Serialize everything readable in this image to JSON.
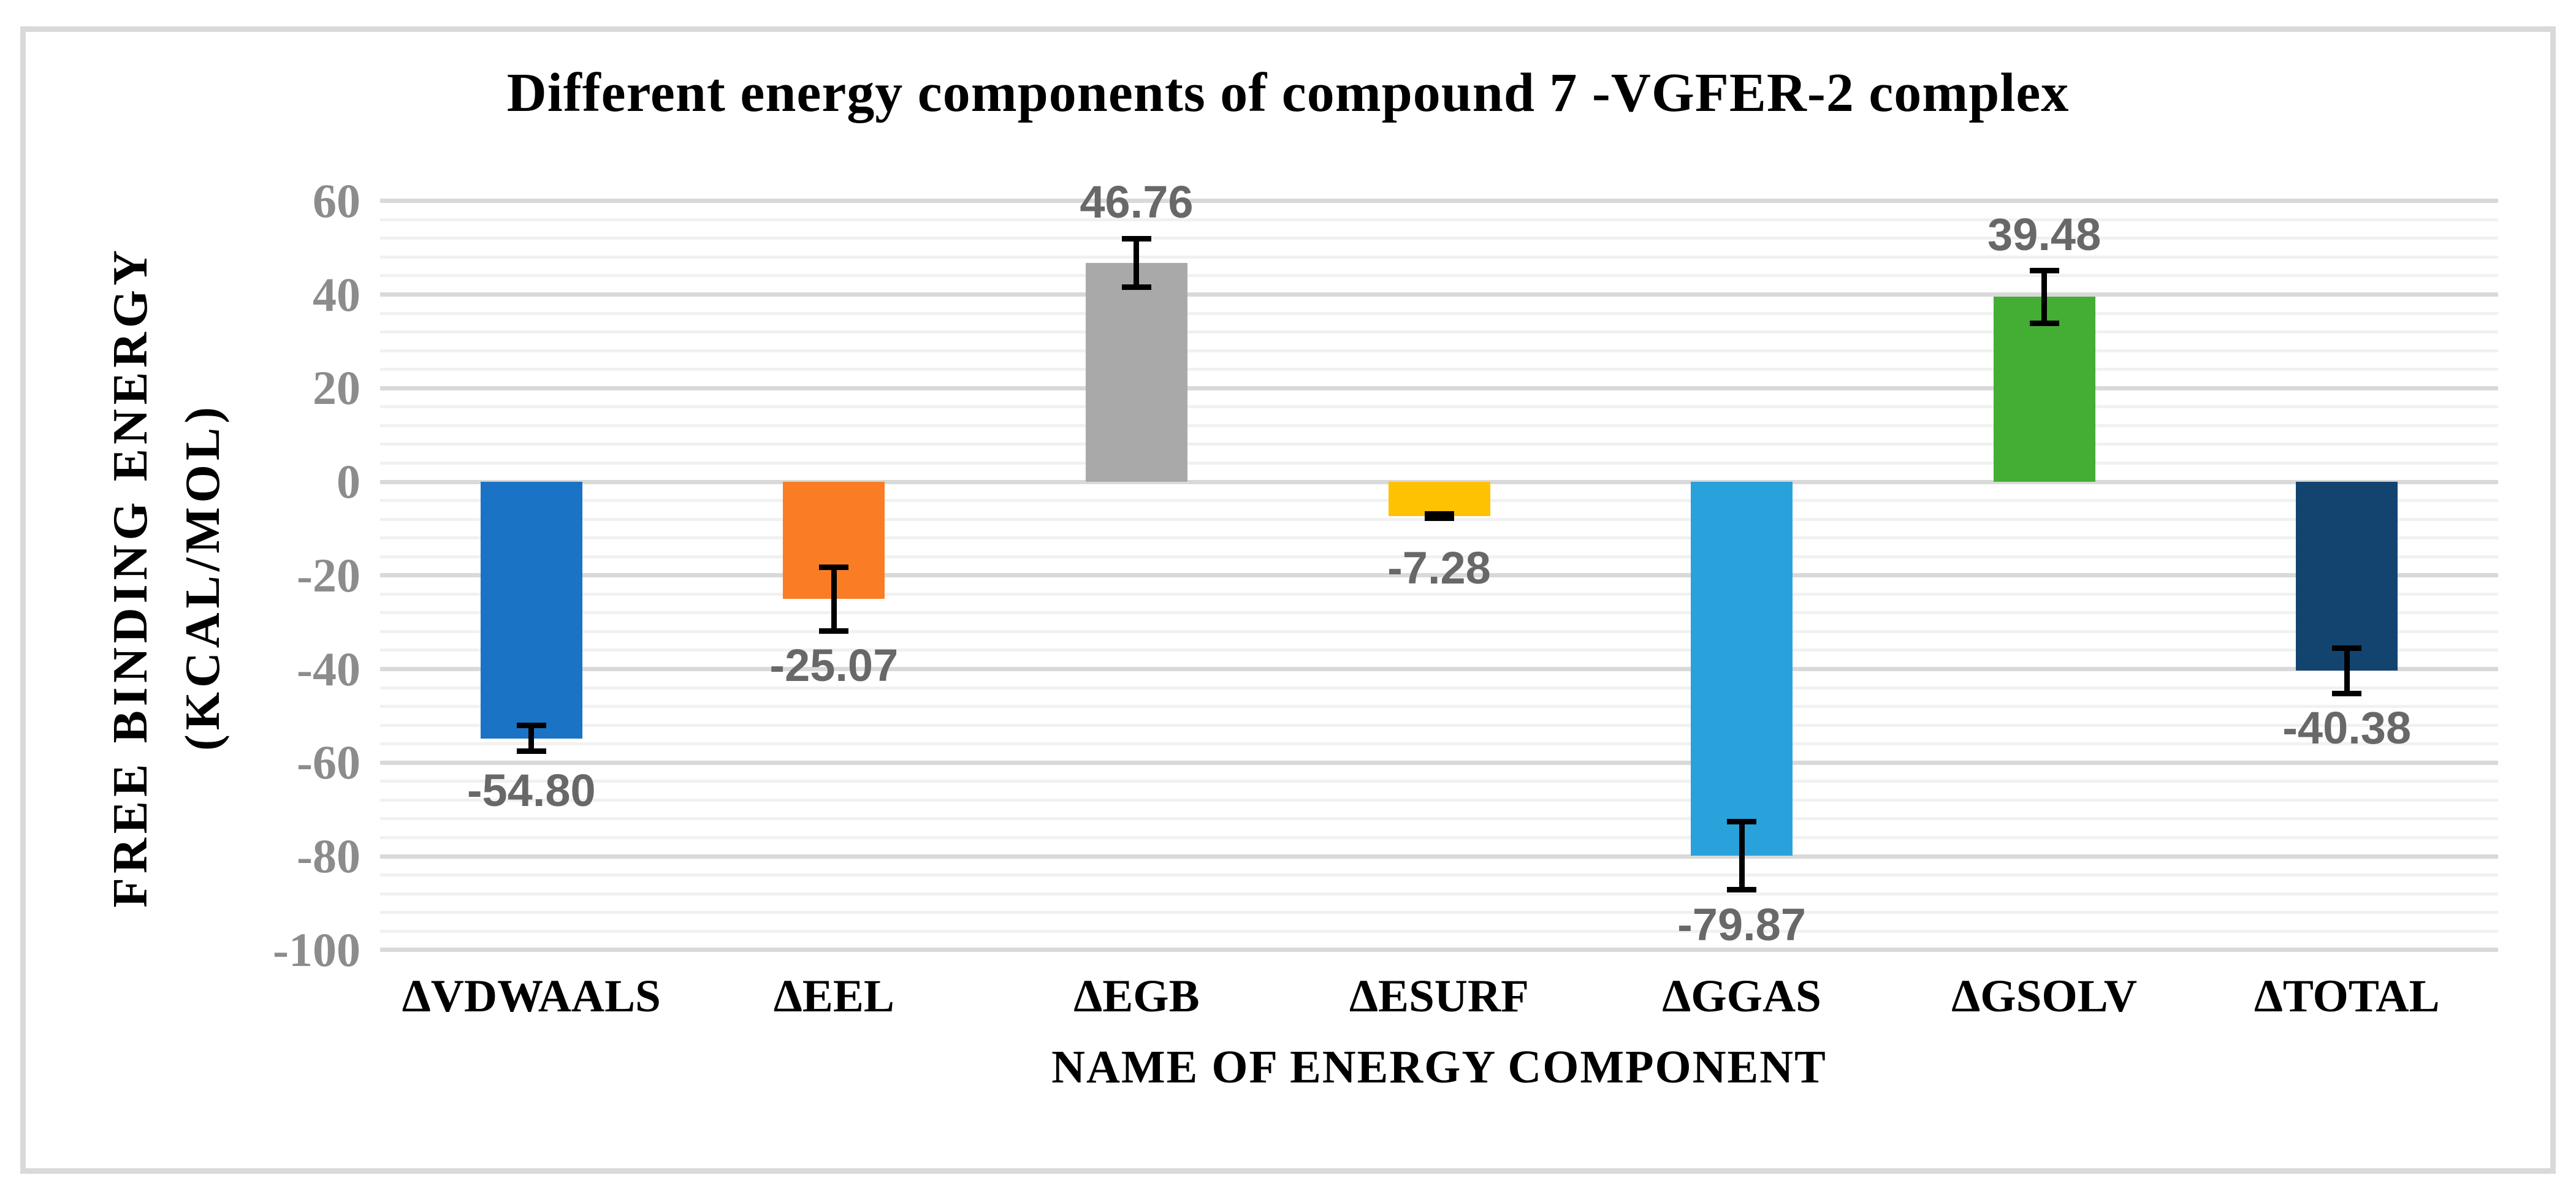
{
  "title": "Different energy components of compound 7 -VGFER-2 complex",
  "chart_data": {
    "type": "bar",
    "title": "Different energy components of compound 7 -VGFER-2 complex",
    "categories": [
      "ΔVDWAALS",
      "ΔEEL",
      "ΔEGB",
      "ΔESURF",
      "ΔGGAS",
      "ΔGSOLV",
      "ΔTOTAL"
    ],
    "values": [
      -54.8,
      -25.07,
      46.76,
      -7.28,
      -79.87,
      39.48,
      -40.38
    ],
    "data_labels": [
      "-54.80",
      "-25.07",
      "46.76",
      "-7.28",
      "-79.87",
      "39.48",
      "-40.38"
    ],
    "error_bars": [
      2.8,
      6.8,
      5.2,
      0.45,
      7.3,
      5.6,
      4.8
    ],
    "bar_colors": [
      "#1B73C6",
      "#FA7D25",
      "#A9A9A9",
      "#FFC203",
      "#29A2DB",
      "#43AD34",
      "#134470"
    ],
    "xlabel": "NAME OF ENERGY COMPONENT",
    "ylabel_line1": "FREE BINDING ENERGY",
    "ylabel_line2": "(KCAL/MOL)",
    "ylim": [
      -100,
      60
    ],
    "yticks": [
      60,
      40,
      20,
      0,
      -20,
      -40,
      -60,
      -80,
      -100
    ],
    "ytick_labels": [
      "60",
      "40",
      "20",
      "0",
      "-20",
      "-40",
      "-60",
      "-80",
      "-100"
    ],
    "ytick_major_step": 20,
    "ytick_minor_step": 4,
    "grid": "horizontal major+minor",
    "legend": "none"
  },
  "colors": {
    "frame_border": "#D9D9D9",
    "major_gridline": "#D9D9D9",
    "minor_gridline": "#F1F1F1",
    "tick_label": "#8C8C8C",
    "data_label": "#686868",
    "text": "#000000",
    "error_bar": "#000000",
    "background": "#FFFFFF"
  }
}
